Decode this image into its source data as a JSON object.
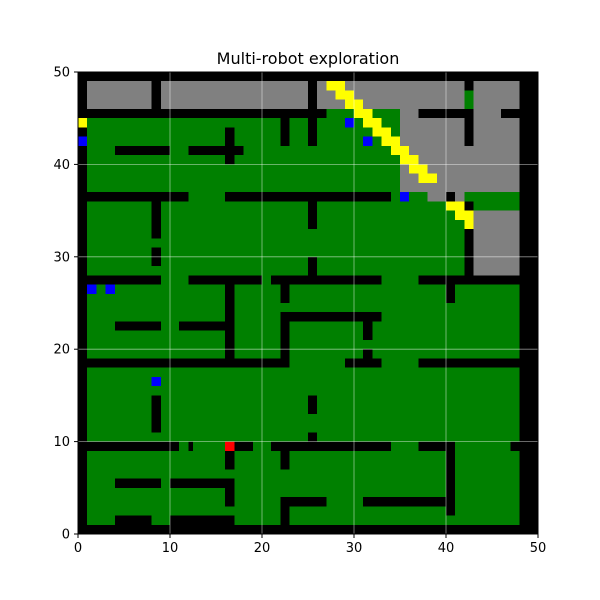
{
  "chart_data": {
    "type": "heatmap",
    "title": "Multi-robot exploration",
    "xlabel": "",
    "ylabel": "",
    "xlim": [
      0,
      50
    ],
    "ylim": [
      0,
      50
    ],
    "x_ticks": [
      "0",
      "10",
      "20",
      "30",
      "40",
      "50"
    ],
    "y_ticks": [
      "0",
      "10",
      "20",
      "30",
      "40",
      "50"
    ],
    "grid": true,
    "colors": {
      "explored": "#008000",
      "unexplored": "#808080",
      "wall": "#000000",
      "frontier": "#ffff00",
      "robot": "#0000ff",
      "target": "#ff0000"
    },
    "walls": [
      [
        0,
        0,
        50,
        1
      ],
      [
        0,
        49,
        50,
        50
      ],
      [
        0,
        0,
        1,
        50
      ],
      [
        48,
        0,
        50,
        50
      ],
      [
        0,
        9,
        11,
        10
      ],
      [
        12,
        9,
        12.5,
        10
      ],
      [
        16,
        9,
        19,
        10
      ],
      [
        21,
        9,
        22,
        10
      ],
      [
        22,
        9,
        34,
        10
      ],
      [
        37,
        9,
        41,
        10
      ],
      [
        47,
        9,
        50,
        10
      ],
      [
        0,
        18,
        23,
        19
      ],
      [
        29,
        18,
        33,
        19
      ],
      [
        37,
        18,
        49,
        19
      ],
      [
        0,
        27,
        9,
        28
      ],
      [
        12,
        27,
        20,
        28
      ],
      [
        21,
        27,
        33,
        28
      ],
      [
        37,
        27,
        49,
        28
      ],
      [
        0,
        36,
        12,
        37
      ],
      [
        16,
        36,
        34,
        37
      ],
      [
        40,
        36,
        41,
        37
      ],
      [
        0,
        45,
        27,
        46
      ],
      [
        37,
        45,
        43,
        46
      ],
      [
        46,
        45,
        50,
        46
      ],
      [
        8,
        45,
        9,
        50
      ],
      [
        25,
        45,
        26,
        50
      ],
      [
        42,
        48,
        43,
        50
      ],
      [
        4,
        41,
        10,
        42
      ],
      [
        12,
        41,
        18,
        42
      ],
      [
        16,
        40,
        17,
        44
      ],
      [
        22,
        42,
        23,
        45
      ],
      [
        25,
        42,
        26,
        45
      ],
      [
        8,
        32,
        9,
        36
      ],
      [
        8,
        29,
        9,
        31
      ],
      [
        25,
        33,
        26,
        37
      ],
      [
        25,
        28,
        26,
        30
      ],
      [
        22,
        25,
        23,
        28
      ],
      [
        16,
        18,
        17,
        28
      ],
      [
        22,
        18,
        23,
        24
      ],
      [
        22,
        23,
        33,
        24
      ],
      [
        31,
        21,
        32,
        24
      ],
      [
        31,
        18,
        32,
        20
      ],
      [
        4,
        22,
        9,
        23
      ],
      [
        11,
        22,
        17,
        23
      ],
      [
        40,
        25,
        41,
        28
      ],
      [
        8,
        11,
        9,
        15
      ],
      [
        25,
        13,
        26,
        15
      ],
      [
        25,
        10,
        26,
        11
      ],
      [
        16,
        7,
        17,
        10
      ],
      [
        22,
        7,
        23,
        10
      ],
      [
        4,
        5,
        9,
        6
      ],
      [
        10,
        5,
        16,
        6
      ],
      [
        16,
        3,
        17,
        6
      ],
      [
        22,
        0,
        23,
        4
      ],
      [
        22,
        3,
        27,
        4
      ],
      [
        4,
        1,
        8,
        2
      ],
      [
        10,
        1,
        17,
        2
      ],
      [
        31,
        3,
        40,
        4
      ],
      [
        40,
        2,
        41,
        10
      ],
      [
        42,
        42,
        43,
        46
      ],
      [
        42,
        28,
        43,
        36
      ]
    ],
    "unexplored_regions": [
      [
        1,
        46,
        8,
        50
      ],
      [
        9,
        46,
        25,
        50
      ],
      [
        26,
        46,
        42,
        50
      ],
      [
        43,
        46,
        48,
        50
      ],
      [
        35,
        42,
        48,
        46
      ],
      [
        35,
        37,
        48,
        42
      ],
      [
        38,
        36,
        42,
        37
      ],
      [
        43,
        28,
        48,
        35
      ]
    ],
    "frontier_cells": [
      [
        27,
        48
      ],
      [
        28,
        48
      ],
      [
        28,
        47
      ],
      [
        29,
        47
      ],
      [
        29,
        46
      ],
      [
        30,
        46
      ],
      [
        30,
        45
      ],
      [
        31,
        45
      ],
      [
        31,
        44
      ],
      [
        32,
        44
      ],
      [
        32,
        43
      ],
      [
        33,
        43
      ],
      [
        33,
        42
      ],
      [
        34,
        42
      ],
      [
        34,
        41
      ],
      [
        35,
        41
      ],
      [
        35,
        40
      ],
      [
        36,
        40
      ],
      [
        36,
        39
      ],
      [
        37,
        39
      ],
      [
        37,
        38
      ],
      [
        38,
        38
      ],
      [
        40,
        35
      ],
      [
        41,
        35
      ],
      [
        41,
        34
      ],
      [
        42,
        34
      ],
      [
        42,
        33
      ],
      [
        0,
        44
      ]
    ],
    "robots": [
      {
        "x": 0.5,
        "y": 42.5
      },
      {
        "x": 29.5,
        "y": 44.5
      },
      {
        "x": 31.5,
        "y": 42.5
      },
      {
        "x": 35.5,
        "y": 36.5
      },
      {
        "x": 1.5,
        "y": 26.5
      },
      {
        "x": 3.5,
        "y": 26.5
      },
      {
        "x": 8.5,
        "y": 16.5
      }
    ],
    "targets": [
      {
        "x": 16.5,
        "y": 9.5
      }
    ]
  }
}
